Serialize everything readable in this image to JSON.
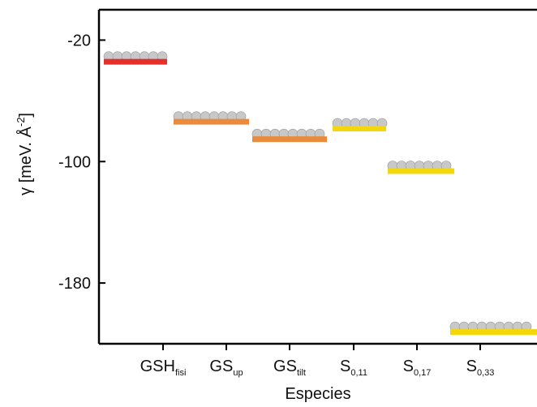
{
  "chart_data": {
    "type": "level",
    "x_label": "Especies",
    "y_label": {
      "text": "γ [meV. Å",
      "sup": "-2",
      "end": "]"
    },
    "categories": [
      {
        "text": "GSH",
        "sub": "fisi"
      },
      {
        "text": "GS",
        "sub": "up"
      },
      {
        "text": "GS",
        "sub": "tilt"
      },
      {
        "text": "S",
        "sub": "0,11"
      },
      {
        "text": "S",
        "sub": "0,17"
      },
      {
        "text": "S",
        "sub": "0,33"
      }
    ],
    "series": [
      {
        "colors": [
          "#e3302a",
          "#e98a3c",
          "#e98a3c",
          "#f4d60c",
          "#f4d60c",
          "#f4d60c"
        ],
        "values": [
          -34,
          -73.5,
          -85,
          -78,
          -106,
          -212
        ]
      }
    ],
    "ylim": [
      -220,
      0
    ],
    "yticks": [
      -20,
      -100,
      -180
    ]
  }
}
